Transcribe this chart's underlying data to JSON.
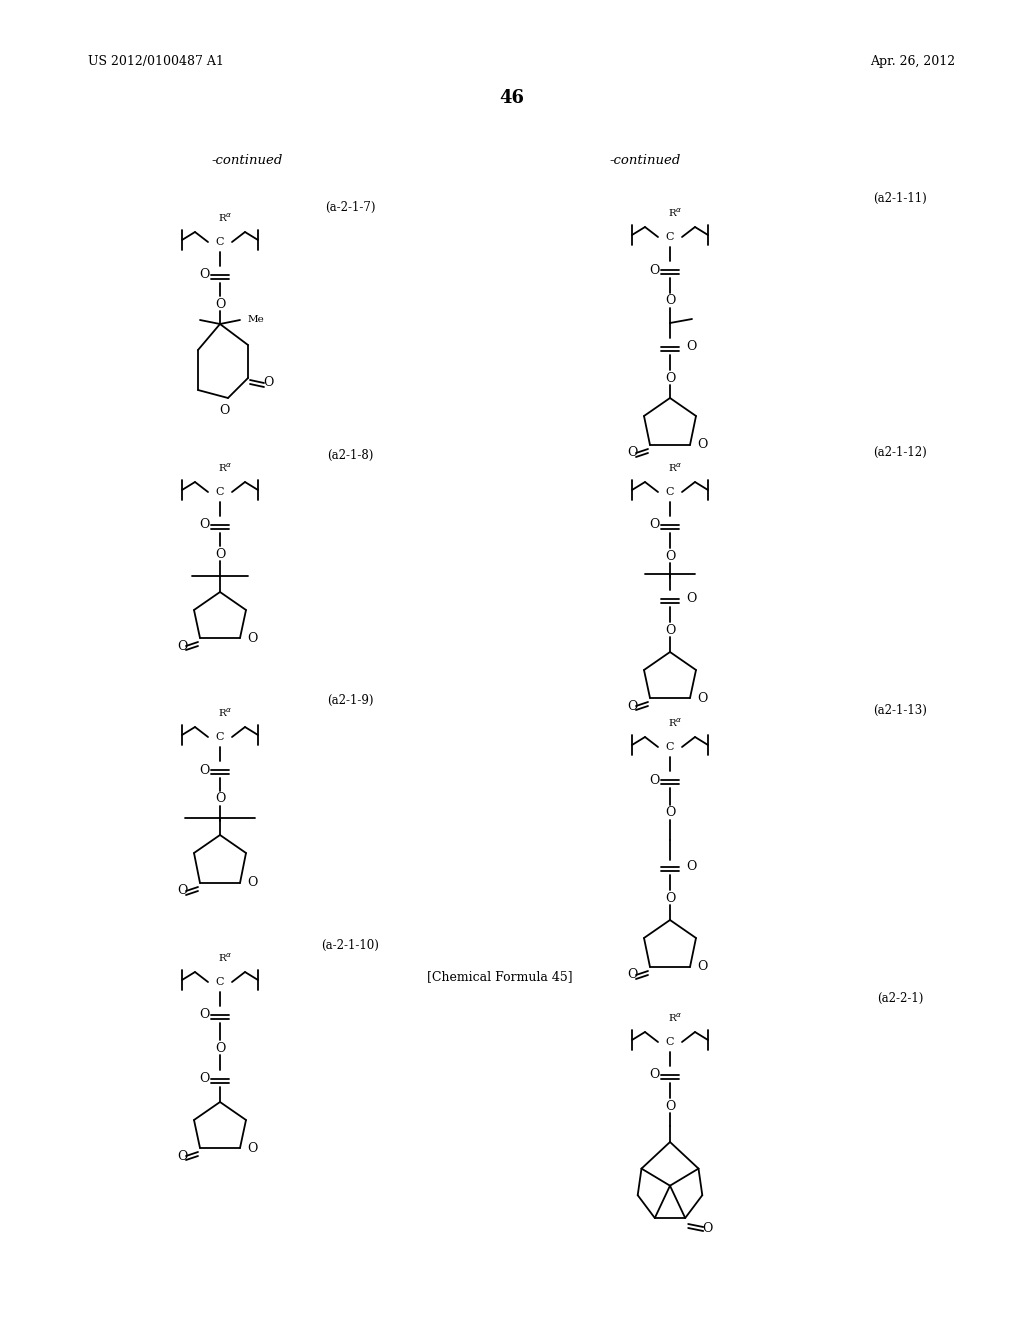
{
  "background_color": "#ffffff",
  "page_number": "46",
  "patent_number": "US 2012/0100487 A1",
  "patent_date": "Apr. 26, 2012",
  "continued_left": "-continued",
  "continued_right": "-continued",
  "chemical_formula_label": "[Chemical Formula 45]",
  "figsize": [
    10.24,
    13.2
  ],
  "dpi": 100
}
